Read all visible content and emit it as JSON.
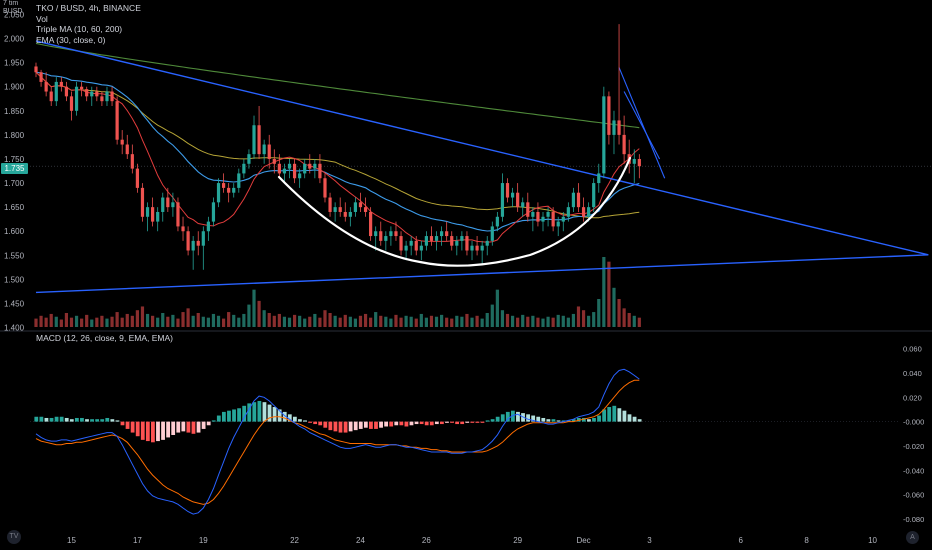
{
  "header": {
    "unit_top": "7 tim",
    "unit_bottom": "BUSD",
    "symbol_line": "TKO / BUSD, 4h, BINANCE",
    "indicators": [
      "Vol",
      "Triple MA (10, 60, 200)",
      "EMA (30, close, 0)"
    ],
    "last_price": "1.735"
  },
  "macd_label": "MACD (12, 26, close, 9, EMA, EMA)",
  "colors": {
    "up": "#26a69a",
    "down": "#ef5350",
    "trendline": "#2962ff",
    "ma10": "#e23c3c",
    "ma60": "#b5a436",
    "ma200": "#4f8a3a",
    "ema30": "#3d9be9",
    "macd_line": "#2962ff",
    "signal_line": "#ff6d00",
    "cup": "#ffffff"
  },
  "icons": {
    "logo": "tradingview-logo-icon",
    "auto_scale": "auto-scale-icon"
  },
  "chart_data": [
    {
      "type": "candlestick",
      "title": "TKO / BUSD, 4h, BINANCE",
      "price_ticks": [
        "2.050",
        "2.000",
        "1.950",
        "1.900",
        "1.850",
        "1.800",
        "1.750",
        "1.700",
        "1.650",
        "1.600",
        "1.550",
        "1.500",
        "1.450",
        "1.400"
      ],
      "price_tick_values": [
        2.05,
        2.0,
        1.95,
        1.9,
        1.85,
        1.8,
        1.75,
        1.7,
        1.65,
        1.6,
        1.55,
        1.5,
        1.45,
        1.4
      ],
      "ylim": [
        1.395,
        2.08
      ],
      "x_ticks": [
        "15",
        "17",
        "19",
        "22",
        "24",
        "26",
        "29",
        "Dec",
        "3",
        "6",
        "8",
        "10"
      ],
      "x_tick_index": [
        7,
        20,
        33,
        51,
        64,
        77,
        95,
        108,
        121,
        139,
        152,
        165
      ],
      "ohlc": [
        [
          1.942,
          1.95,
          1.92,
          1.93
        ],
        [
          1.93,
          1.935,
          1.9,
          1.91
        ],
        [
          1.91,
          1.93,
          1.88,
          1.89
        ],
        [
          1.89,
          1.9,
          1.86,
          1.87
        ],
        [
          1.87,
          1.92,
          1.86,
          1.91
        ],
        [
          1.91,
          1.92,
          1.89,
          1.9
        ],
        [
          1.9,
          1.91,
          1.87,
          1.88
        ],
        [
          1.88,
          1.89,
          1.83,
          1.85
        ],
        [
          1.85,
          1.91,
          1.84,
          1.9
        ],
        [
          1.9,
          1.91,
          1.88,
          1.895
        ],
        [
          1.895,
          1.9,
          1.87,
          1.88
        ],
        [
          1.88,
          1.9,
          1.86,
          1.89
        ],
        [
          1.89,
          1.9,
          1.87,
          1.88
        ],
        [
          1.88,
          1.89,
          1.86,
          1.87
        ],
        [
          1.87,
          1.9,
          1.86,
          1.89
        ],
        [
          1.89,
          1.9,
          1.86,
          1.87
        ],
        [
          1.87,
          1.88,
          1.78,
          1.79
        ],
        [
          1.79,
          1.81,
          1.76,
          1.78
        ],
        [
          1.78,
          1.8,
          1.75,
          1.76
        ],
        [
          1.76,
          1.78,
          1.72,
          1.73
        ],
        [
          1.73,
          1.74,
          1.68,
          1.69
        ],
        [
          1.69,
          1.7,
          1.62,
          1.63
        ],
        [
          1.63,
          1.66,
          1.6,
          1.65
        ],
        [
          1.65,
          1.67,
          1.61,
          1.62
        ],
        [
          1.62,
          1.65,
          1.6,
          1.64
        ],
        [
          1.64,
          1.68,
          1.62,
          1.67
        ],
        [
          1.67,
          1.69,
          1.64,
          1.65
        ],
        [
          1.65,
          1.68,
          1.63,
          1.66
        ],
        [
          1.66,
          1.67,
          1.6,
          1.61
        ],
        [
          1.61,
          1.63,
          1.58,
          1.6
        ],
        [
          1.6,
          1.61,
          1.55,
          1.56
        ],
        [
          1.56,
          1.59,
          1.52,
          1.58
        ],
        [
          1.58,
          1.6,
          1.55,
          1.57
        ],
        [
          1.57,
          1.61,
          1.52,
          1.6
        ],
        [
          1.6,
          1.63,
          1.58,
          1.62
        ],
        [
          1.62,
          1.67,
          1.61,
          1.66
        ],
        [
          1.66,
          1.71,
          1.65,
          1.7
        ],
        [
          1.7,
          1.72,
          1.68,
          1.69
        ],
        [
          1.69,
          1.7,
          1.66,
          1.68
        ],
        [
          1.68,
          1.7,
          1.67,
          1.69
        ],
        [
          1.69,
          1.73,
          1.68,
          1.72
        ],
        [
          1.72,
          1.75,
          1.71,
          1.74
        ],
        [
          1.74,
          1.77,
          1.73,
          1.76
        ],
        [
          1.76,
          1.84,
          1.75,
          1.82
        ],
        [
          1.82,
          1.86,
          1.75,
          1.76
        ],
        [
          1.76,
          1.79,
          1.74,
          1.78
        ],
        [
          1.78,
          1.8,
          1.73,
          1.75
        ],
        [
          1.75,
          1.77,
          1.72,
          1.74
        ],
        [
          1.74,
          1.76,
          1.71,
          1.72
        ],
        [
          1.72,
          1.74,
          1.7,
          1.73
        ],
        [
          1.73,
          1.75,
          1.71,
          1.74
        ],
        [
          1.74,
          1.75,
          1.7,
          1.71
        ],
        [
          1.71,
          1.73,
          1.69,
          1.72
        ],
        [
          1.72,
          1.75,
          1.71,
          1.74
        ],
        [
          1.74,
          1.76,
          1.72,
          1.73
        ],
        [
          1.73,
          1.75,
          1.71,
          1.74
        ],
        [
          1.74,
          1.76,
          1.7,
          1.71
        ],
        [
          1.71,
          1.72,
          1.66,
          1.67
        ],
        [
          1.67,
          1.68,
          1.63,
          1.64
        ],
        [
          1.64,
          1.66,
          1.62,
          1.65
        ],
        [
          1.65,
          1.67,
          1.63,
          1.64
        ],
        [
          1.64,
          1.66,
          1.62,
          1.63
        ],
        [
          1.63,
          1.65,
          1.61,
          1.64
        ],
        [
          1.64,
          1.67,
          1.63,
          1.66
        ],
        [
          1.66,
          1.68,
          1.64,
          1.65
        ],
        [
          1.65,
          1.67,
          1.63,
          1.64
        ],
        [
          1.64,
          1.65,
          1.58,
          1.59
        ],
        [
          1.59,
          1.61,
          1.56,
          1.6
        ],
        [
          1.6,
          1.62,
          1.57,
          1.58
        ],
        [
          1.58,
          1.6,
          1.56,
          1.59
        ],
        [
          1.59,
          1.61,
          1.57,
          1.6
        ],
        [
          1.6,
          1.62,
          1.58,
          1.59
        ],
        [
          1.59,
          1.6,
          1.55,
          1.56
        ],
        [
          1.56,
          1.58,
          1.54,
          1.57
        ],
        [
          1.57,
          1.59,
          1.55,
          1.58
        ],
        [
          1.58,
          1.59,
          1.55,
          1.56
        ],
        [
          1.56,
          1.58,
          1.54,
          1.57
        ],
        [
          1.57,
          1.6,
          1.56,
          1.59
        ],
        [
          1.59,
          1.61,
          1.57,
          1.58
        ],
        [
          1.58,
          1.6,
          1.56,
          1.59
        ],
        [
          1.59,
          1.61,
          1.57,
          1.6
        ],
        [
          1.6,
          1.62,
          1.58,
          1.59
        ],
        [
          1.59,
          1.6,
          1.56,
          1.57
        ],
        [
          1.57,
          1.59,
          1.55,
          1.58
        ],
        [
          1.58,
          1.6,
          1.56,
          1.59
        ],
        [
          1.59,
          1.6,
          1.55,
          1.56
        ],
        [
          1.56,
          1.58,
          1.54,
          1.57
        ],
        [
          1.57,
          1.59,
          1.55,
          1.56
        ],
        [
          1.56,
          1.58,
          1.53,
          1.57
        ],
        [
          1.57,
          1.59,
          1.55,
          1.58
        ],
        [
          1.58,
          1.62,
          1.57,
          1.61
        ],
        [
          1.61,
          1.64,
          1.6,
          1.63
        ],
        [
          1.63,
          1.72,
          1.62,
          1.7
        ],
        [
          1.7,
          1.71,
          1.66,
          1.67
        ],
        [
          1.67,
          1.69,
          1.65,
          1.68
        ],
        [
          1.68,
          1.7,
          1.64,
          1.65
        ],
        [
          1.65,
          1.67,
          1.63,
          1.66
        ],
        [
          1.66,
          1.68,
          1.62,
          1.63
        ],
        [
          1.63,
          1.65,
          1.6,
          1.64
        ],
        [
          1.64,
          1.66,
          1.61,
          1.62
        ],
        [
          1.62,
          1.64,
          1.6,
          1.63
        ],
        [
          1.63,
          1.65,
          1.61,
          1.64
        ],
        [
          1.64,
          1.65,
          1.6,
          1.61
        ],
        [
          1.61,
          1.63,
          1.59,
          1.62
        ],
        [
          1.62,
          1.64,
          1.6,
          1.63
        ],
        [
          1.63,
          1.66,
          1.62,
          1.65
        ],
        [
          1.65,
          1.69,
          1.64,
          1.68
        ],
        [
          1.68,
          1.7,
          1.64,
          1.65
        ],
        [
          1.65,
          1.67,
          1.62,
          1.63
        ],
        [
          1.63,
          1.66,
          1.62,
          1.65
        ],
        [
          1.65,
          1.71,
          1.64,
          1.7
        ],
        [
          1.7,
          1.74,
          1.68,
          1.72
        ],
        [
          1.72,
          1.9,
          1.71,
          1.88
        ],
        [
          1.88,
          1.89,
          1.78,
          1.8
        ],
        [
          1.8,
          1.85,
          1.76,
          1.83
        ],
        [
          1.83,
          2.03,
          1.78,
          1.8
        ],
        [
          1.8,
          1.84,
          1.74,
          1.76
        ],
        [
          1.76,
          1.79,
          1.72,
          1.74
        ],
        [
          1.74,
          1.77,
          1.7,
          1.75
        ],
        [
          1.75,
          1.76,
          1.71,
          1.735
        ]
      ],
      "volume": [
        9,
        12,
        10,
        14,
        11,
        8,
        15,
        10,
        12,
        9,
        13,
        8,
        10,
        12,
        9,
        11,
        16,
        10,
        14,
        12,
        18,
        22,
        14,
        12,
        10,
        15,
        11,
        13,
        9,
        16,
        20,
        12,
        15,
        11,
        10,
        14,
        12,
        9,
        16,
        13,
        10,
        14,
        24,
        40,
        28,
        18,
        15,
        12,
        14,
        11,
        10,
        13,
        12,
        9,
        11,
        14,
        10,
        18,
        15,
        12,
        10,
        13,
        11,
        9,
        12,
        14,
        10,
        16,
        12,
        11,
        9,
        13,
        10,
        12,
        11,
        9,
        14,
        10,
        12,
        11,
        13,
        10,
        9,
        12,
        11,
        14,
        10,
        12,
        9,
        15,
        24,
        40,
        18,
        14,
        12,
        10,
        13,
        11,
        12,
        10,
        9,
        11,
        10,
        13,
        12,
        10,
        14,
        22,
        18,
        12,
        16,
        30,
        75,
        70,
        42,
        30,
        20,
        15,
        12,
        10
      ],
      "trendlines": [
        {
          "from": [
            0,
            1.995
          ],
          "to": [
            176,
            1.551
          ]
        },
        {
          "from": [
            0,
            1.473
          ],
          "to": [
            176,
            1.551
          ]
        }
      ]
    },
    {
      "type": "macd",
      "title": "MACD (12, 26, close, 9, EMA, EMA)",
      "y_ticks": [
        "0.060",
        "0.040",
        "0.020",
        "-0.000",
        "-0.020",
        "-0.040",
        "-0.060",
        "-0.080"
      ],
      "y_tick_values": [
        0.06,
        0.04,
        0.02,
        0.0,
        -0.02,
        -0.04,
        -0.06,
        -0.08
      ],
      "ylim": [
        -0.085,
        0.063
      ],
      "histogram": [
        0.004,
        0.004,
        0.003,
        0.003,
        0.004,
        0.004,
        0.003,
        0.002,
        0.003,
        0.003,
        0.002,
        0.002,
        0.002,
        0.002,
        0.003,
        0.002,
        0.001,
        -0.003,
        -0.006,
        -0.009,
        -0.012,
        -0.015,
        -0.016,
        -0.017,
        -0.016,
        -0.015,
        -0.013,
        -0.011,
        -0.009,
        -0.008,
        -0.009,
        -0.01,
        -0.009,
        -0.006,
        -0.003,
        0.001,
        0.005,
        0.008,
        0.009,
        0.01,
        0.011,
        0.013,
        0.015,
        0.016,
        0.017,
        0.016,
        0.014,
        0.012,
        0.01,
        0.008,
        0.006,
        0.004,
        0.002,
        0.001,
        -0.001,
        -0.002,
        -0.003,
        -0.005,
        -0.007,
        -0.008,
        -0.009,
        -0.009,
        -0.008,
        -0.007,
        -0.006,
        -0.005,
        -0.006,
        -0.006,
        -0.005,
        -0.004,
        -0.004,
        -0.003,
        -0.003,
        -0.004,
        -0.003,
        -0.002,
        -0.002,
        -0.003,
        -0.003,
        -0.002,
        -0.002,
        -0.001,
        -0.001,
        -0.002,
        -0.002,
        -0.001,
        -0.001,
        -0.001,
        -0.001,
        0.001,
        0.002,
        0.004,
        0.006,
        0.008,
        0.009,
        0.008,
        0.007,
        0.006,
        0.005,
        0.004,
        0.003,
        0.002,
        0.002,
        0.001,
        0.001,
        0.001,
        0.002,
        0.003,
        0.003,
        0.002,
        0.003,
        0.005,
        0.01,
        0.012,
        0.013,
        0.011,
        0.009,
        0.006,
        0.004,
        0.002
      ],
      "macd": [
        -0.01,
        -0.013,
        -0.015,
        -0.016,
        -0.016,
        -0.015,
        -0.015,
        -0.016,
        -0.015,
        -0.014,
        -0.013,
        -0.012,
        -0.011,
        -0.01,
        -0.009,
        -0.009,
        -0.012,
        -0.019,
        -0.027,
        -0.035,
        -0.043,
        -0.051,
        -0.057,
        -0.061,
        -0.063,
        -0.064,
        -0.065,
        -0.066,
        -0.068,
        -0.071,
        -0.074,
        -0.076,
        -0.075,
        -0.071,
        -0.064,
        -0.055,
        -0.044,
        -0.033,
        -0.022,
        -0.013,
        -0.005,
        0.003,
        0.01,
        0.017,
        0.021,
        0.02,
        0.017,
        0.013,
        0.009,
        0.005,
        0.002,
        -0.001,
        -0.004,
        -0.006,
        -0.009,
        -0.011,
        -0.013,
        -0.015,
        -0.017,
        -0.019,
        -0.021,
        -0.022,
        -0.022,
        -0.021,
        -0.02,
        -0.019,
        -0.02,
        -0.021,
        -0.021,
        -0.02,
        -0.019,
        -0.019,
        -0.02,
        -0.021,
        -0.021,
        -0.022,
        -0.023,
        -0.024,
        -0.025,
        -0.025,
        -0.025,
        -0.025,
        -0.026,
        -0.026,
        -0.026,
        -0.025,
        -0.025,
        -0.024,
        -0.023,
        -0.02,
        -0.016,
        -0.011,
        -0.004,
        0.002,
        0.005,
        0.006,
        0.004,
        0.002,
        0.001,
        0.0,
        -0.001,
        -0.002,
        -0.002,
        -0.001,
        0.0,
        0.001,
        0.002,
        0.004,
        0.005,
        0.006,
        0.008,
        0.012,
        0.022,
        0.031,
        0.038,
        0.042,
        0.043,
        0.041,
        0.038,
        0.035
      ],
      "signal": [
        -0.014,
        -0.016,
        -0.017,
        -0.018,
        -0.019,
        -0.019,
        -0.018,
        -0.018,
        -0.017,
        -0.017,
        -0.016,
        -0.015,
        -0.014,
        -0.013,
        -0.012,
        -0.011,
        -0.012,
        -0.014,
        -0.017,
        -0.022,
        -0.027,
        -0.033,
        -0.039,
        -0.044,
        -0.048,
        -0.052,
        -0.055,
        -0.057,
        -0.059,
        -0.062,
        -0.064,
        -0.066,
        -0.067,
        -0.068,
        -0.067,
        -0.064,
        -0.059,
        -0.053,
        -0.046,
        -0.039,
        -0.032,
        -0.025,
        -0.018,
        -0.011,
        -0.005,
        0.0,
        0.003,
        0.004,
        0.004,
        0.003,
        0.001,
        -0.001,
        -0.002,
        -0.004,
        -0.006,
        -0.008,
        -0.01,
        -0.011,
        -0.013,
        -0.015,
        -0.016,
        -0.017,
        -0.018,
        -0.018,
        -0.018,
        -0.018,
        -0.018,
        -0.019,
        -0.019,
        -0.019,
        -0.019,
        -0.019,
        -0.02,
        -0.02,
        -0.021,
        -0.021,
        -0.022,
        -0.022,
        -0.023,
        -0.023,
        -0.024,
        -0.024,
        -0.025,
        -0.025,
        -0.025,
        -0.025,
        -0.025,
        -0.025,
        -0.025,
        -0.024,
        -0.022,
        -0.02,
        -0.017,
        -0.013,
        -0.009,
        -0.006,
        -0.004,
        -0.002,
        -0.001,
        -0.001,
        -0.001,
        -0.001,
        -0.001,
        -0.001,
        -0.001,
        0.0,
        0.0,
        0.001,
        0.002,
        0.003,
        0.004,
        0.006,
        0.01,
        0.015,
        0.02,
        0.025,
        0.029,
        0.032,
        0.034,
        0.034
      ]
    }
  ]
}
